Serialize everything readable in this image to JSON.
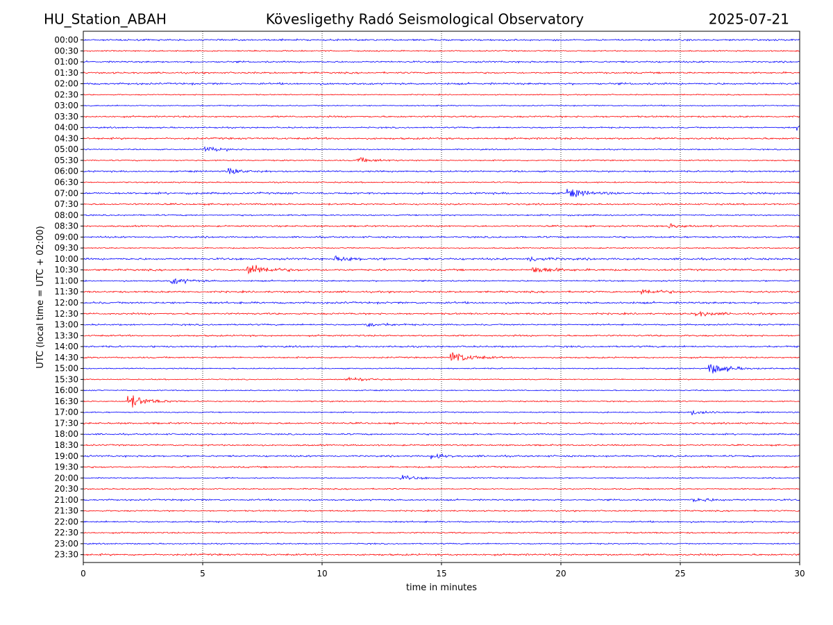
{
  "header": {
    "station": "HU_Station_ABAH",
    "observatory": "Kövesligethy Radó Seismological Observatory",
    "date": "2025-07-21"
  },
  "chart_data": {
    "type": "line",
    "xlabel": "time in minutes",
    "ylabel": "UTC (local time = UTC + 02:00)",
    "xlim": [
      0,
      30
    ],
    "x_ticks": [
      0,
      5,
      10,
      15,
      20,
      25,
      30
    ],
    "grid": "vertical dotted lines at each x tick",
    "series_colors": [
      "#0000ff",
      "#ff0000"
    ],
    "row_labels": [
      "00:00",
      "00:30",
      "01:00",
      "01:30",
      "02:00",
      "02:30",
      "03:00",
      "03:30",
      "04:00",
      "04:30",
      "05:00",
      "05:30",
      "06:00",
      "06:30",
      "07:00",
      "07:30",
      "08:00",
      "08:30",
      "09:00",
      "09:30",
      "10:00",
      "10:30",
      "11:00",
      "11:30",
      "12:00",
      "12:30",
      "13:00",
      "13:30",
      "14:00",
      "14:30",
      "15:00",
      "15:30",
      "16:00",
      "16:30",
      "17:00",
      "17:30",
      "18:00",
      "18:30",
      "19:00",
      "19:30",
      "20:00",
      "20:30",
      "21:00",
      "21:30",
      "22:00",
      "22:30",
      "23:00",
      "23:30"
    ],
    "events": [
      {
        "row": "04:00",
        "minute": 29.9,
        "amplitude": 0.5
      },
      {
        "row": "05:00",
        "minute": 5.1,
        "amplitude": 0.5
      },
      {
        "row": "05:30",
        "minute": 11.5,
        "amplitude": 0.5
      },
      {
        "row": "06:00",
        "minute": 6.1,
        "amplitude": 0.6
      },
      {
        "row": "07:00",
        "minute": 20.3,
        "amplitude": 0.8
      },
      {
        "row": "08:30",
        "minute": 24.5,
        "amplitude": 0.4
      },
      {
        "row": "10:00",
        "minute": 10.6,
        "amplitude": 0.5
      },
      {
        "row": "10:00",
        "minute": 18.6,
        "amplitude": 0.5
      },
      {
        "row": "10:30",
        "minute": 6.9,
        "amplitude": 1.4
      },
      {
        "row": "10:30",
        "minute": 18.8,
        "amplitude": 0.8
      },
      {
        "row": "11:00",
        "minute": 3.7,
        "amplitude": 0.6
      },
      {
        "row": "11:30",
        "minute": 23.4,
        "amplitude": 0.6
      },
      {
        "row": "12:30",
        "minute": 25.6,
        "amplitude": 0.5
      },
      {
        "row": "13:00",
        "minute": 11.8,
        "amplitude": 0.4
      },
      {
        "row": "14:30",
        "minute": 15.4,
        "amplitude": 1.2
      },
      {
        "row": "15:00",
        "minute": 26.2,
        "amplitude": 1.2
      },
      {
        "row": "15:30",
        "minute": 11.0,
        "amplitude": 0.6
      },
      {
        "row": "16:30",
        "minute": 1.9,
        "amplitude": 1.4
      },
      {
        "row": "17:00",
        "minute": 25.5,
        "amplitude": 0.5
      },
      {
        "row": "19:00",
        "minute": 14.5,
        "amplitude": 0.5
      },
      {
        "row": "20:00",
        "minute": 13.3,
        "amplitude": 0.4
      },
      {
        "row": "21:00",
        "minute": 25.5,
        "amplitude": 0.4
      }
    ]
  }
}
